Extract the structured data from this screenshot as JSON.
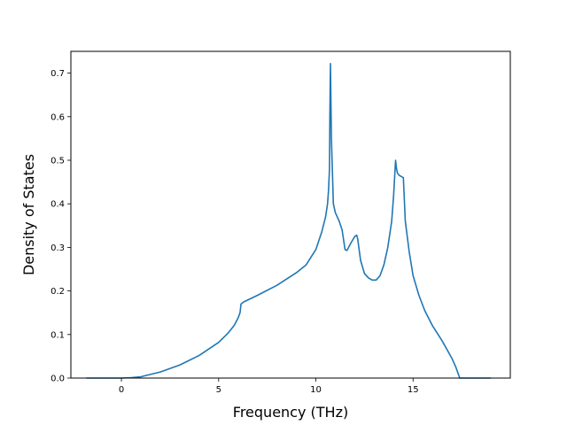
{
  "chart_data": {
    "type": "line",
    "title": "",
    "xlabel": "Frequency (THz)",
    "ylabel": "Density of States",
    "xlim": [
      -2.6,
      20.0
    ],
    "ylim": [
      0.0,
      0.75
    ],
    "xticks": [
      0,
      5,
      10,
      15
    ],
    "yticks": [
      0.0,
      0.1,
      0.2,
      0.3,
      0.4,
      0.5,
      0.6,
      0.7
    ],
    "xtick_labels": [
      "0",
      "5",
      "10",
      "15"
    ],
    "ytick_labels": [
      "0.0",
      "0.1",
      "0.2",
      "0.3",
      "0.4",
      "0.5",
      "0.6",
      "0.7"
    ],
    "grid": false,
    "legend": "none",
    "line_color": "#1f77b4",
    "series": [
      {
        "x": [
          -1.8,
          0.0,
          0.5,
          1.0,
          2.0,
          3.0,
          4.0,
          5.0,
          5.5,
          5.8,
          6.0,
          6.1,
          6.15,
          6.3,
          7.0,
          8.0,
          9.0,
          9.5,
          10.0,
          10.3,
          10.5,
          10.6,
          10.65,
          10.7,
          10.72,
          10.75,
          10.8,
          10.9,
          11.0,
          11.2,
          11.35,
          11.5,
          11.6,
          11.8,
          12.0,
          12.1,
          12.15,
          12.3,
          12.5,
          12.7,
          12.9,
          13.1,
          13.3,
          13.5,
          13.7,
          13.9,
          14.0,
          14.1,
          14.15,
          14.2,
          14.3,
          14.5,
          14.6,
          14.8,
          15.0,
          15.3,
          15.6,
          16.0,
          16.5,
          17.0,
          17.2,
          17.4,
          19.0
        ],
        "y": [
          0.0,
          0.0,
          0.001,
          0.003,
          0.014,
          0.03,
          0.052,
          0.082,
          0.104,
          0.121,
          0.138,
          0.15,
          0.17,
          0.175,
          0.19,
          0.213,
          0.242,
          0.26,
          0.295,
          0.335,
          0.37,
          0.4,
          0.43,
          0.48,
          0.6,
          0.722,
          0.55,
          0.4,
          0.38,
          0.36,
          0.34,
          0.295,
          0.293,
          0.31,
          0.325,
          0.328,
          0.32,
          0.27,
          0.24,
          0.23,
          0.225,
          0.225,
          0.235,
          0.26,
          0.3,
          0.36,
          0.42,
          0.5,
          0.48,
          0.47,
          0.465,
          0.46,
          0.36,
          0.29,
          0.235,
          0.19,
          0.155,
          0.12,
          0.085,
          0.045,
          0.025,
          0.0,
          0.0
        ]
      }
    ]
  }
}
